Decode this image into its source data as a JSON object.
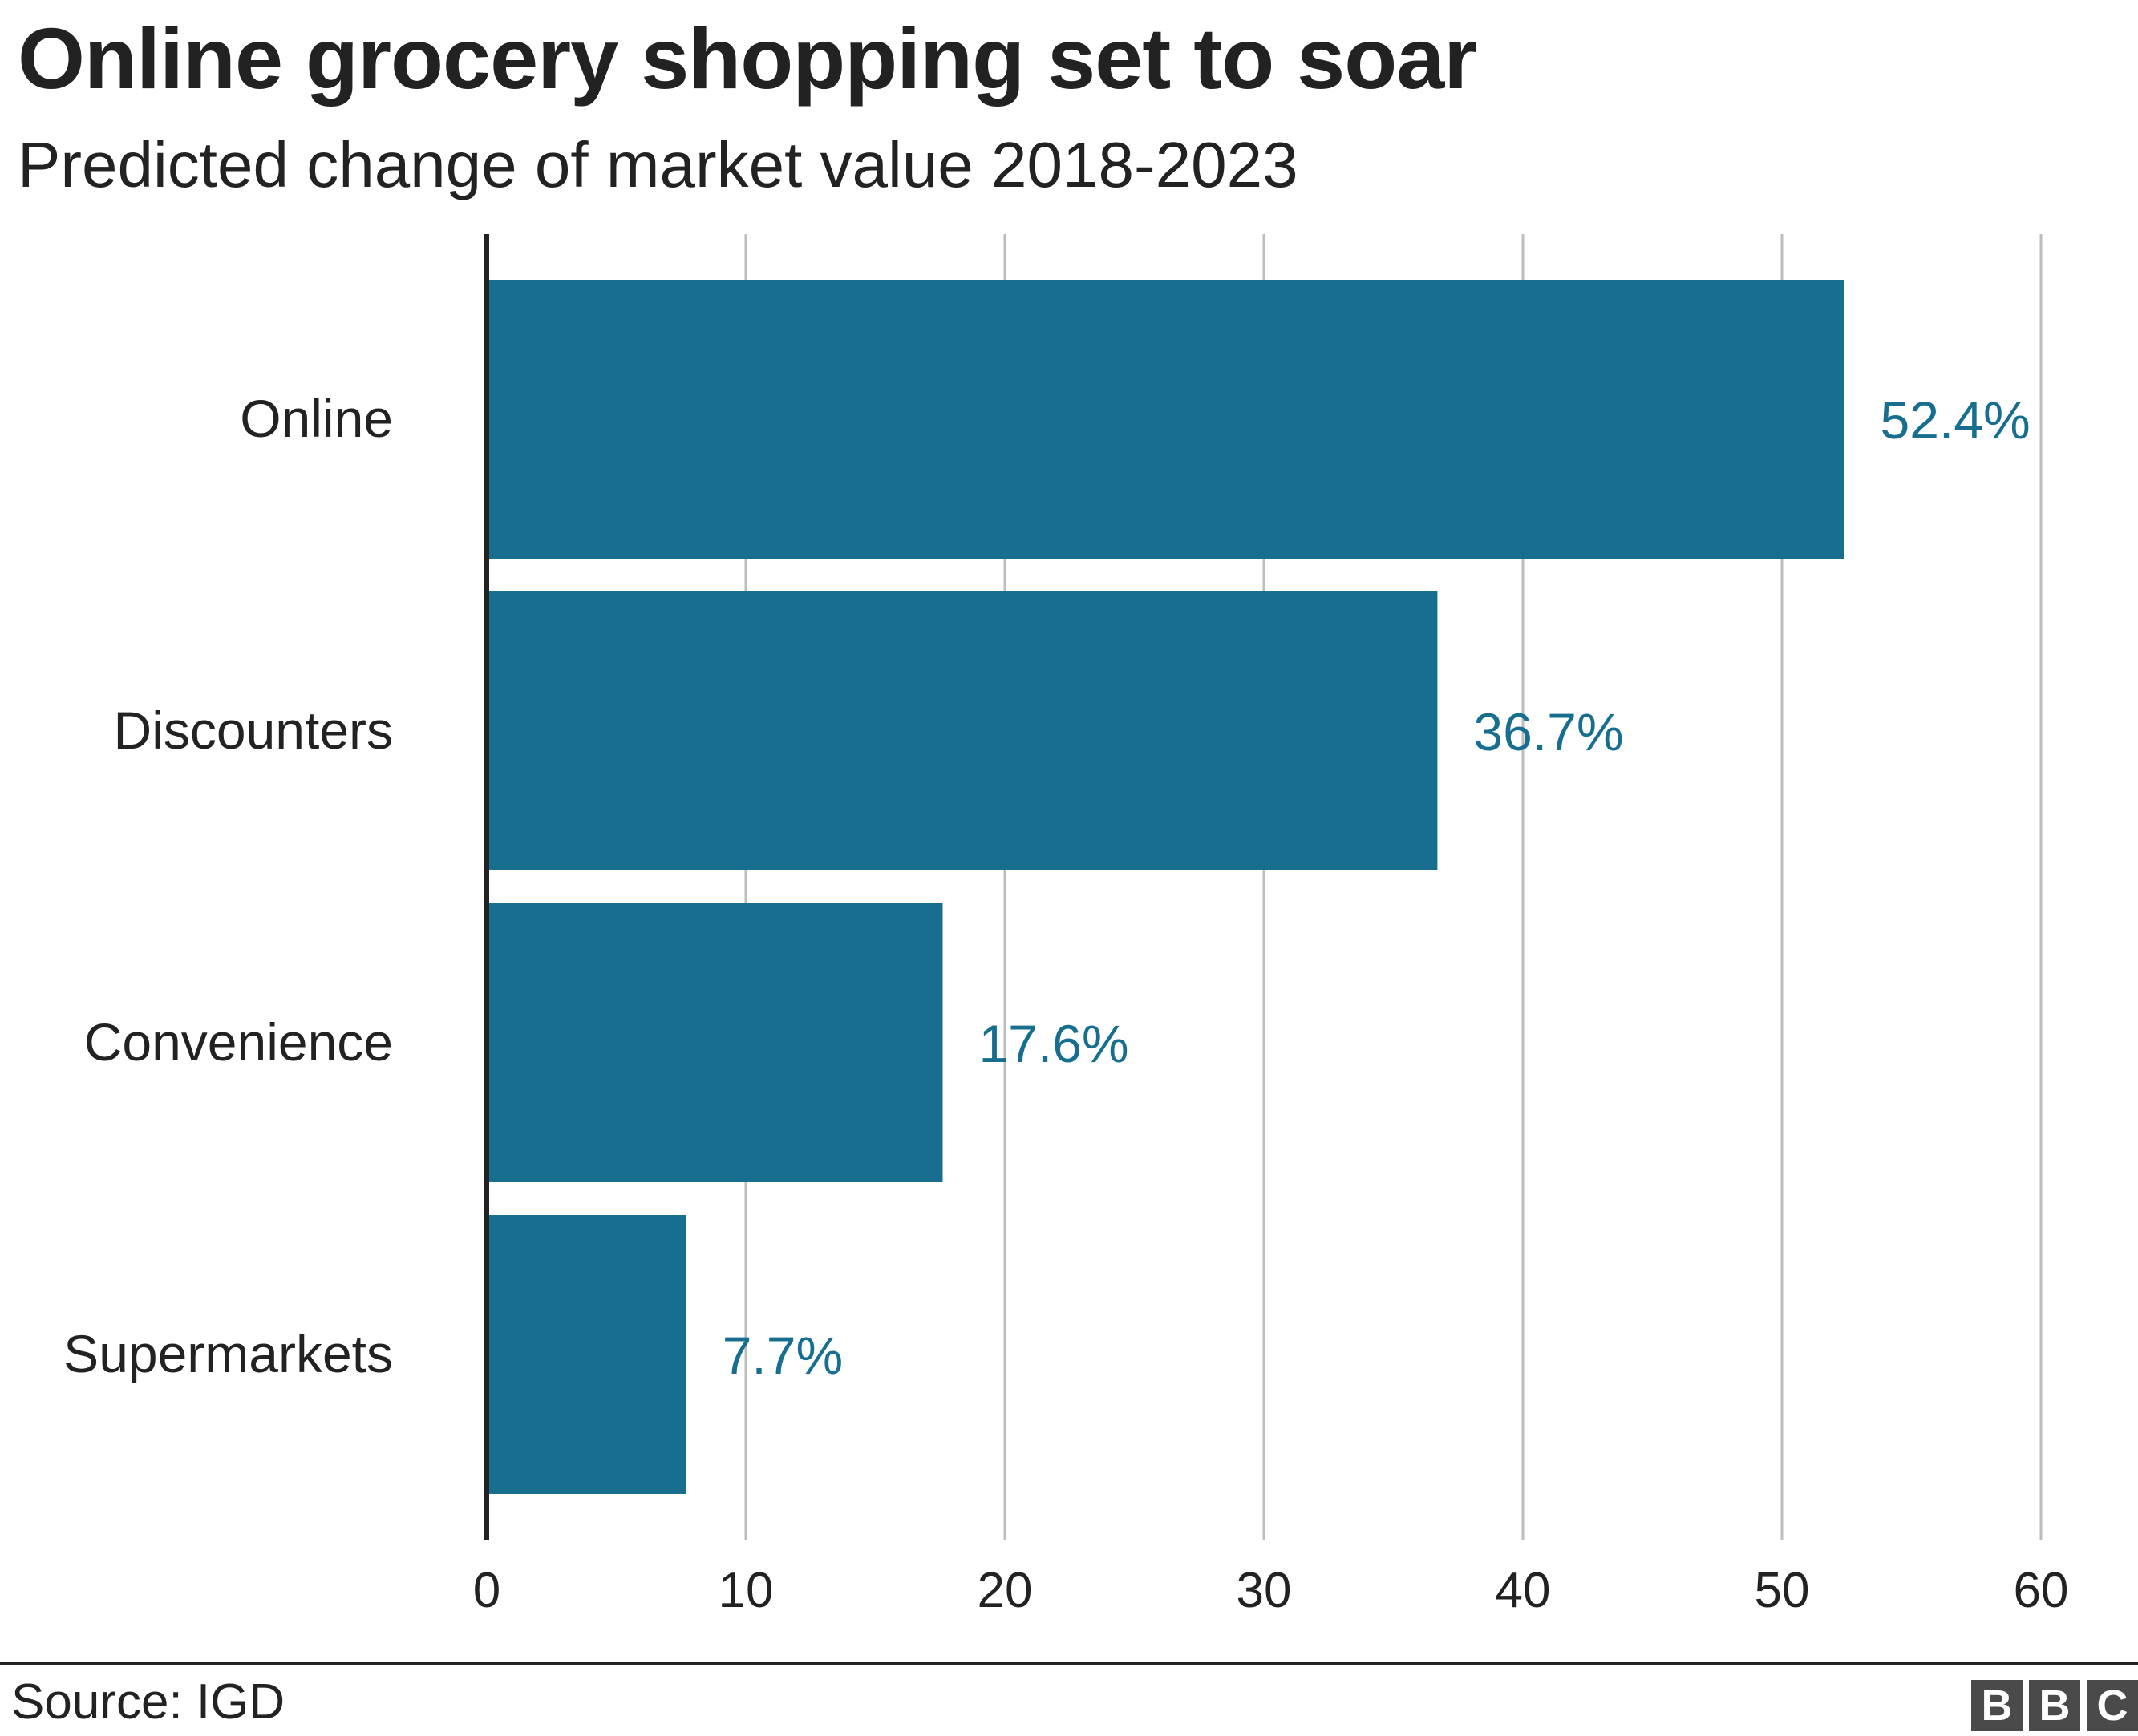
{
  "chart_data": {
    "type": "bar",
    "orientation": "horizontal",
    "title": "Online grocery shopping set to soar",
    "subtitle": "Predicted change of market value 2018-2023",
    "categories": [
      "Online",
      "Discounters",
      "Convenience",
      "Supermarkets"
    ],
    "values": [
      52.4,
      36.7,
      17.6,
      7.7
    ],
    "data_labels": [
      "52.4%",
      "36.7%",
      "17.6%",
      "7.7%"
    ],
    "xlim": [
      0,
      60
    ],
    "xticks": [
      "0",
      "10",
      "20",
      "30",
      "40",
      "50",
      "60"
    ],
    "xlabel": "",
    "ylabel": "",
    "grid": "vertical",
    "bar_color": "#176e8f",
    "label_color": "#176e8f"
  },
  "footer": {
    "source": "Source: IGD",
    "logo": [
      "B",
      "B",
      "C"
    ]
  }
}
